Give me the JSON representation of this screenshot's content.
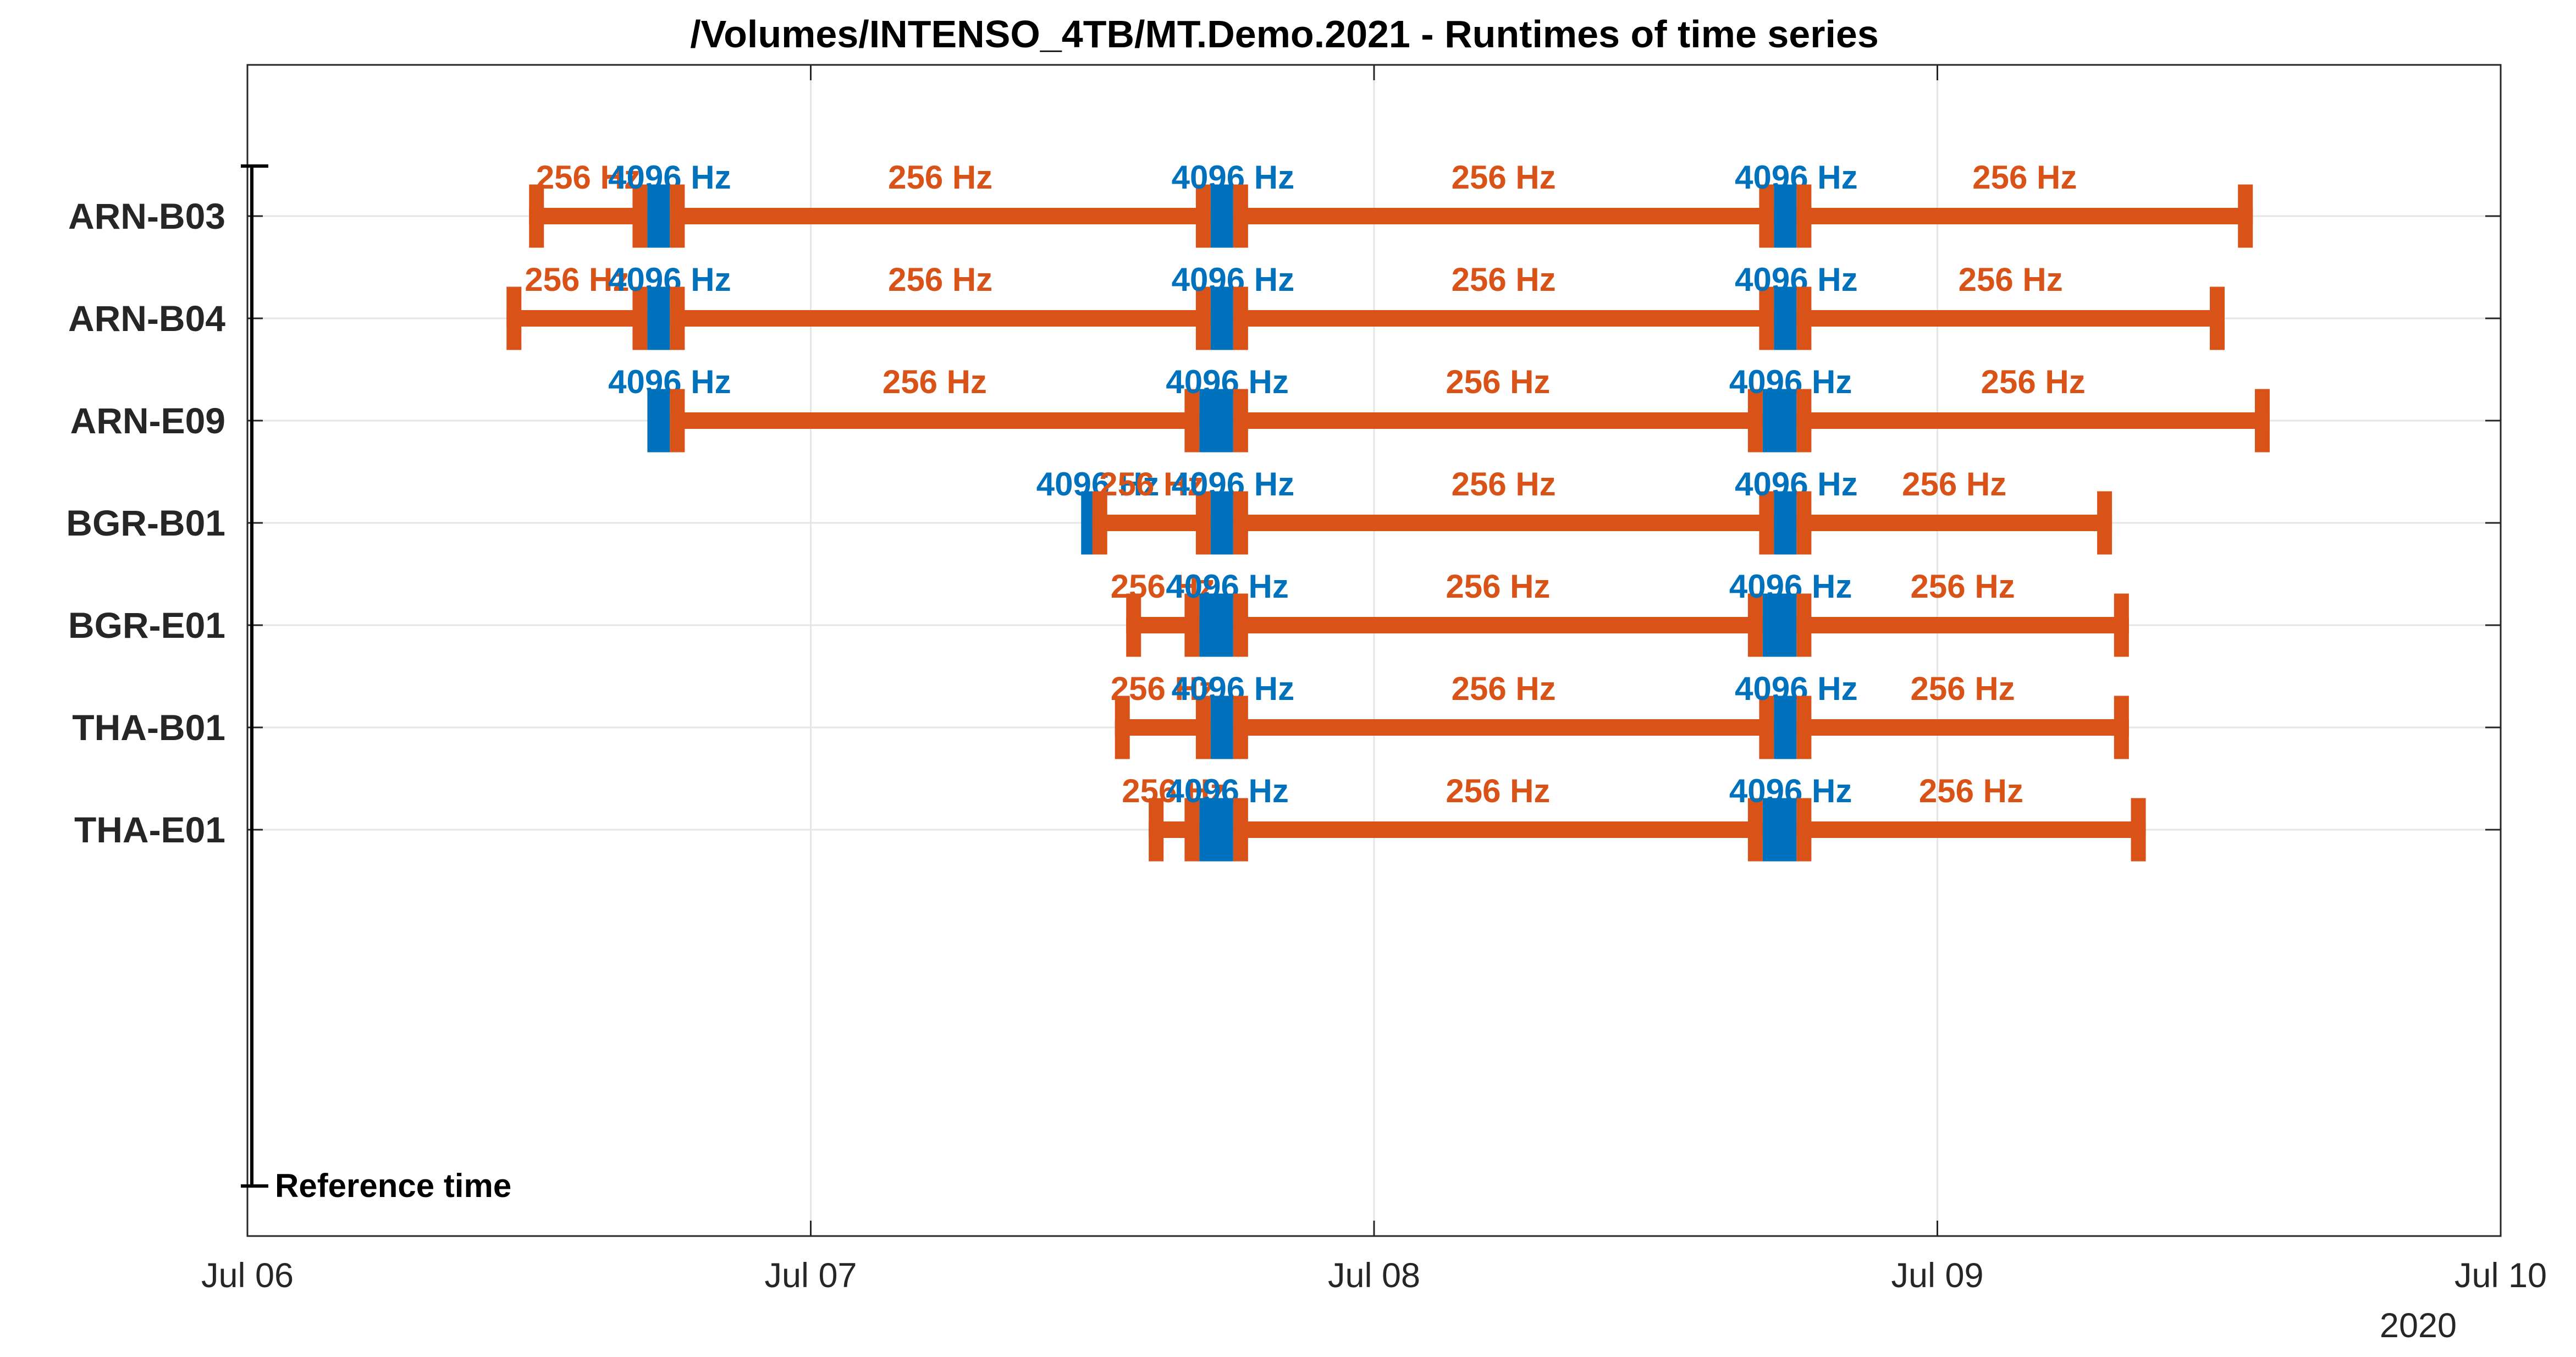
{
  "chart_data": {
    "type": "timeline",
    "title": "/Volumes/INTENSO_4TB/MT.Demo.2021 - Runtimes of time series",
    "x_unit": "days since Jul 06 00:00",
    "xlim": [
      0,
      4
    ],
    "x_ticks": [
      {
        "value": 0,
        "label": "Jul 06"
      },
      {
        "value": 1,
        "label": "Jul 07"
      },
      {
        "value": 2,
        "label": "Jul 08"
      },
      {
        "value": 3,
        "label": "Jul 09"
      },
      {
        "value": 4,
        "label": "Jul 10"
      }
    ],
    "x_secondary_label": "2020",
    "grid": true,
    "reference_label": "Reference time",
    "colors": {
      "256 Hz": "#D95319",
      "4096 Hz": "#0072BD"
    },
    "categories": [
      "ARN-B03",
      "ARN-B04",
      "ARN-E09",
      "BGR-B01",
      "BGR-E01",
      "THA-B01",
      "THA-E01"
    ],
    "rows": [
      {
        "name": "ARN-B03",
        "segments": [
          {
            "label": "256 Hz",
            "start": 0.5,
            "end": 0.71
          },
          {
            "label": "4096 Hz",
            "start": 0.71,
            "end": 0.75
          },
          {
            "label": "256 Hz",
            "start": 0.75,
            "end": 1.71
          },
          {
            "label": "4096 Hz",
            "start": 1.71,
            "end": 1.75
          },
          {
            "label": "256 Hz",
            "start": 1.75,
            "end": 2.71
          },
          {
            "label": "4096 Hz",
            "start": 2.71,
            "end": 2.75
          },
          {
            "label": "256 Hz",
            "start": 2.75,
            "end": 3.56
          }
        ]
      },
      {
        "name": "ARN-B04",
        "segments": [
          {
            "label": "256 Hz",
            "start": 0.46,
            "end": 0.71
          },
          {
            "label": "4096 Hz",
            "start": 0.71,
            "end": 0.75
          },
          {
            "label": "256 Hz",
            "start": 0.75,
            "end": 1.71
          },
          {
            "label": "4096 Hz",
            "start": 1.71,
            "end": 1.75
          },
          {
            "label": "256 Hz",
            "start": 1.75,
            "end": 2.71
          },
          {
            "label": "4096 Hz",
            "start": 2.71,
            "end": 2.75
          },
          {
            "label": "256 Hz",
            "start": 2.75,
            "end": 3.51
          }
        ]
      },
      {
        "name": "ARN-E09",
        "segments": [
          {
            "label": "4096 Hz",
            "start": 0.71,
            "end": 0.75
          },
          {
            "label": "256 Hz",
            "start": 0.75,
            "end": 1.69
          },
          {
            "label": "4096 Hz",
            "start": 1.69,
            "end": 1.75
          },
          {
            "label": "256 Hz",
            "start": 1.75,
            "end": 2.69
          },
          {
            "label": "4096 Hz",
            "start": 2.69,
            "end": 2.75
          },
          {
            "label": "256 Hz",
            "start": 2.75,
            "end": 3.59
          }
        ]
      },
      {
        "name": "BGR-B01",
        "segments": [
          {
            "label": "4096 Hz",
            "start": 1.48,
            "end": 1.5
          },
          {
            "label": "256 Hz",
            "start": 1.5,
            "end": 1.71
          },
          {
            "label": "4096 Hz",
            "start": 1.71,
            "end": 1.75
          },
          {
            "label": "256 Hz",
            "start": 1.75,
            "end": 2.71
          },
          {
            "label": "4096 Hz",
            "start": 2.71,
            "end": 2.75
          },
          {
            "label": "256 Hz",
            "start": 2.75,
            "end": 3.31
          }
        ]
      },
      {
        "name": "BGR-E01",
        "segments": [
          {
            "label": "256 Hz",
            "start": 1.56,
            "end": 1.69
          },
          {
            "label": "4096 Hz",
            "start": 1.69,
            "end": 1.75
          },
          {
            "label": "256 Hz",
            "start": 1.75,
            "end": 2.69
          },
          {
            "label": "4096 Hz",
            "start": 2.69,
            "end": 2.75
          },
          {
            "label": "256 Hz",
            "start": 2.75,
            "end": 3.34
          }
        ]
      },
      {
        "name": "THA-B01",
        "segments": [
          {
            "label": "256 Hz",
            "start": 1.54,
            "end": 1.71
          },
          {
            "label": "4096 Hz",
            "start": 1.71,
            "end": 1.75
          },
          {
            "label": "256 Hz",
            "start": 1.75,
            "end": 2.71
          },
          {
            "label": "4096 Hz",
            "start": 2.71,
            "end": 2.75
          },
          {
            "label": "256 Hz",
            "start": 2.75,
            "end": 3.34
          }
        ]
      },
      {
        "name": "THA-E01",
        "segments": [
          {
            "label": "256 Hz",
            "start": 1.6,
            "end": 1.69
          },
          {
            "label": "4096 Hz",
            "start": 1.69,
            "end": 1.75
          },
          {
            "label": "256 Hz",
            "start": 1.75,
            "end": 2.69
          },
          {
            "label": "4096 Hz",
            "start": 2.69,
            "end": 2.75
          },
          {
            "label": "256 Hz",
            "start": 2.75,
            "end": 3.37
          }
        ]
      }
    ]
  }
}
